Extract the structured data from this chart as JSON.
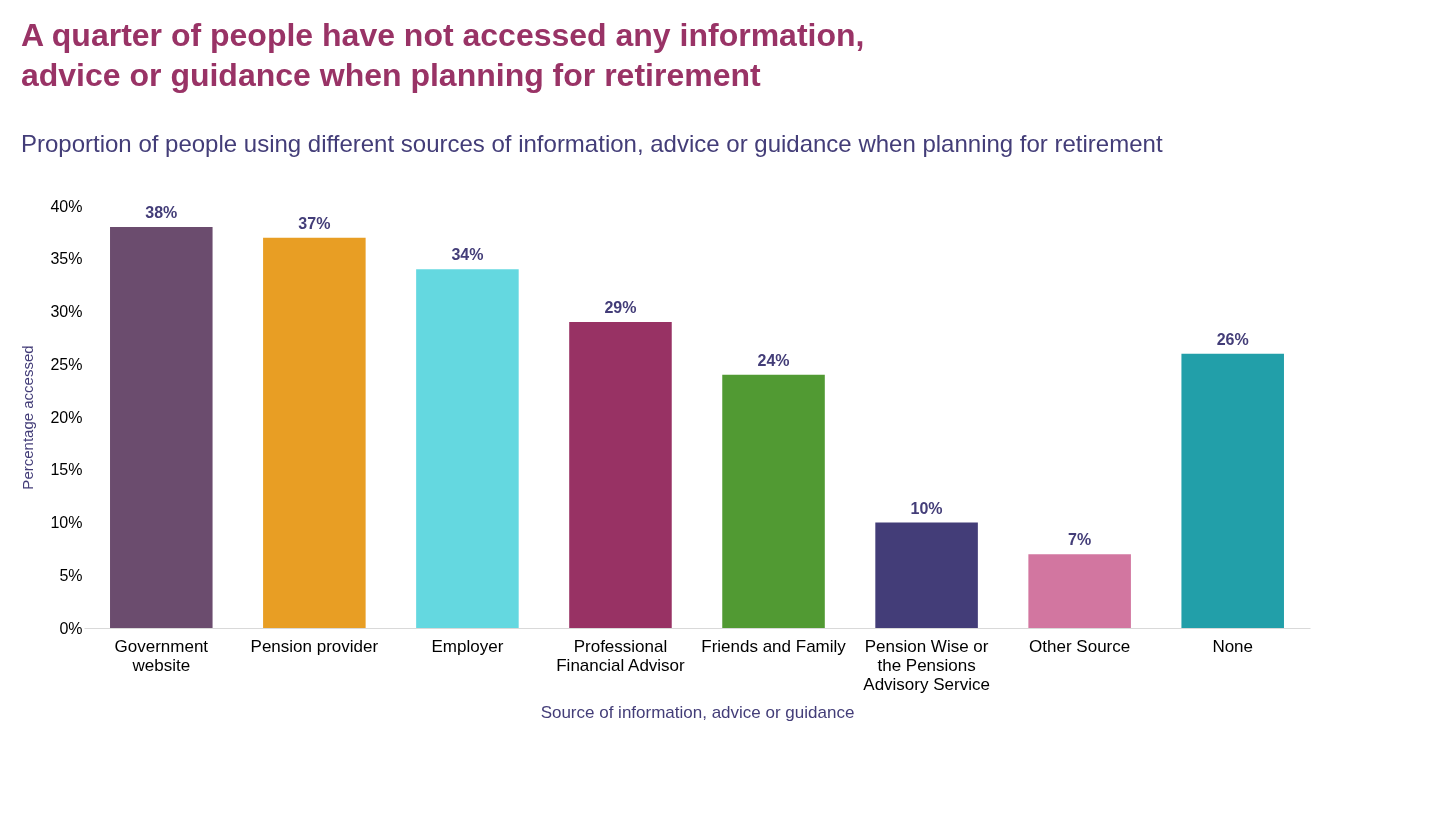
{
  "chart_data": {
    "type": "bar",
    "title": "A quarter of people have not accessed any information,\nadvice or guidance when planning for retirement",
    "subtitle": "Proportion of people using different sources of information, advice or guidance when planning for retirement",
    "xlabel": "Source of information, advice or guidance",
    "ylabel": "Percentage accessed",
    "categories": [
      "Government\nwebsite",
      "Pension provider",
      "Employer",
      "Professional\nFinancial Advisor",
      "Friends and Family",
      "Pension Wise or\nthe Pensions\nAdvisory Service",
      "Other Source",
      "None"
    ],
    "values": [
      38,
      37,
      34,
      29,
      24,
      10,
      7,
      26
    ],
    "value_labels": [
      "38%",
      "37%",
      "34%",
      "29%",
      "24%",
      "10%",
      "7%",
      "26%"
    ],
    "colors": [
      "#6b4c6e",
      "#e89e24",
      "#64d8e0",
      "#983264",
      "#519a33",
      "#433d78",
      "#d276a0",
      "#229fa9"
    ],
    "ylim": [
      0,
      40
    ],
    "yticks": [
      {
        "value": 0,
        "label": "0%"
      },
      {
        "value": 5,
        "label": "5%"
      },
      {
        "value": 10,
        "label": "10%"
      },
      {
        "value": 15,
        "label": "15%"
      },
      {
        "value": 20,
        "label": "20%"
      },
      {
        "value": 25,
        "label": "25%"
      },
      {
        "value": 30,
        "label": "30%"
      },
      {
        "value": 35,
        "label": "35%"
      },
      {
        "value": 40,
        "label": "40%"
      }
    ],
    "grid": false
  }
}
